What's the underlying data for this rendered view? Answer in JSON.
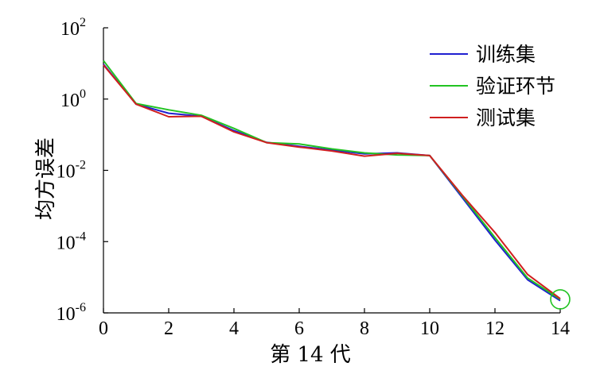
{
  "chart_data": {
    "type": "line",
    "title": "",
    "xlabel": "第 14 代",
    "ylabel": "均方误差",
    "xlim": [
      0,
      14
    ],
    "xticks": [
      0,
      2,
      4,
      6,
      8,
      10,
      12,
      14
    ],
    "yscale": "log",
    "ylim": [
      1e-06,
      100
    ],
    "yticks": [
      {
        "value": 100,
        "base": "10",
        "exp": "2"
      },
      {
        "value": 1,
        "base": "10",
        "exp": "0"
      },
      {
        "value": 0.01,
        "base": "10",
        "exp": "-2"
      },
      {
        "value": 0.0001,
        "base": "10",
        "exp": "-4"
      },
      {
        "value": 1e-06,
        "base": "10",
        "exp": "-6"
      }
    ],
    "grid": false,
    "legend_position": "top-right",
    "series": [
      {
        "name": "训练集",
        "color": "#1f1fd0",
        "x": [
          0,
          1,
          2,
          3,
          4,
          5,
          6,
          7,
          8,
          9,
          10,
          11,
          12,
          13,
          14
        ],
        "y": [
          9.5,
          0.72,
          0.4,
          0.33,
          0.13,
          0.061,
          0.047,
          0.037,
          0.029,
          0.031,
          0.026,
          0.0017,
          0.00011,
          8.5e-06,
          2.2e-06
        ]
      },
      {
        "name": "验证环节",
        "color": "#22c322",
        "x": [
          0,
          1,
          2,
          3,
          4,
          5,
          6,
          7,
          8,
          9,
          10,
          11,
          12,
          13,
          14
        ],
        "y": [
          12,
          0.75,
          0.5,
          0.35,
          0.15,
          0.06,
          0.055,
          0.04,
          0.031,
          0.027,
          0.026,
          0.0019,
          0.00013,
          9.5e-06,
          2.4e-06
        ]
      },
      {
        "name": "测试集",
        "color": "#d01f1f",
        "x": [
          0,
          1,
          2,
          3,
          4,
          5,
          6,
          7,
          8,
          9,
          10,
          11,
          12,
          13,
          14
        ],
        "y": [
          9,
          0.72,
          0.32,
          0.33,
          0.12,
          0.06,
          0.045,
          0.035,
          0.025,
          0.03,
          0.026,
          0.002,
          0.00018,
          1.2e-05,
          2.5e-06
        ]
      }
    ],
    "annotations": [
      {
        "type": "circle",
        "x": 14,
        "y": 2.4e-06,
        "color": "#22c322"
      }
    ]
  }
}
